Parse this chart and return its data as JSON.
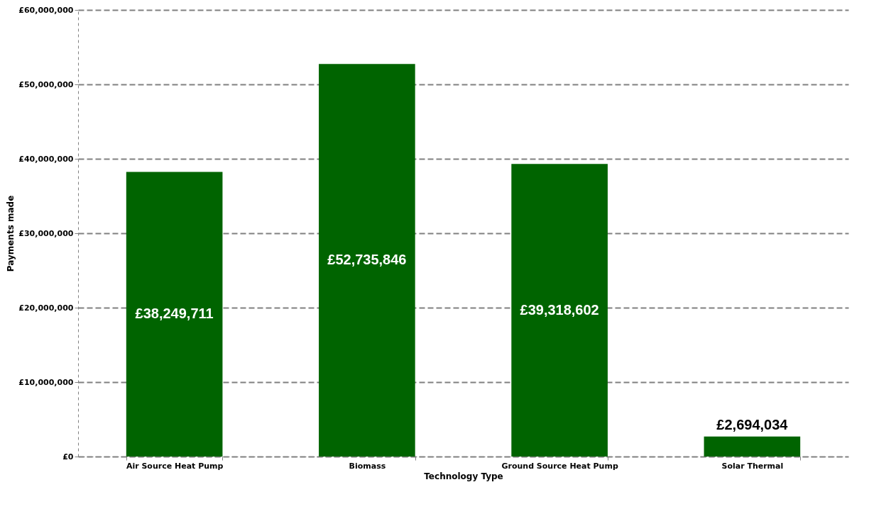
{
  "chart_data": {
    "type": "bar",
    "xlabel": "Technology Type",
    "ylabel": "Payments made",
    "categories": [
      "Air Source Heat Pump",
      "Biomass",
      "Ground Source Heat Pump",
      "Solar Thermal"
    ],
    "values": [
      38249711,
      52735846,
      39318602,
      2694034
    ],
    "value_labels": [
      "£38,249,711",
      "£52,735,846",
      "£39,318,602",
      "£2,694,034"
    ],
    "color": "#006400",
    "ylim": [
      0,
      60000000
    ],
    "yticks": [
      {
        "value": 0,
        "label": "£0"
      },
      {
        "value": 10000000,
        "label": "£10,000,000"
      },
      {
        "value": 20000000,
        "label": "£20,000,000"
      },
      {
        "value": 30000000,
        "label": "£30,000,000"
      },
      {
        "value": 40000000,
        "label": "£40,000,000"
      },
      {
        "value": 50000000,
        "label": "£50,000,000"
      },
      {
        "value": 60000000,
        "label": "£60,000,000"
      }
    ],
    "grid": "y"
  }
}
